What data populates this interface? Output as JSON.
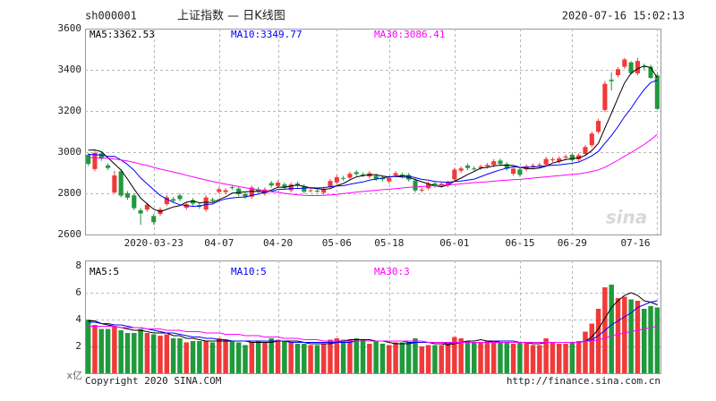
{
  "header": {
    "symbol": "sh000001",
    "title": "上证指数 — 日K线图",
    "datetime": "2020-07-16 15:02:13"
  },
  "footer": {
    "copyright": "Copyright 2020 SINA.COM",
    "url": "http://finance.sina.com.cn"
  },
  "chart_data": [
    {
      "type": "candlestick",
      "watermark": "sina",
      "categories": [
        null,
        null,
        null,
        null,
        null,
        null,
        null,
        null,
        null,
        null,
        "2020-03-23",
        null,
        null,
        null,
        null,
        null,
        null,
        null,
        null,
        null,
        "04-07",
        null,
        null,
        null,
        null,
        null,
        null,
        null,
        null,
        "04-20",
        null,
        null,
        null,
        null,
        null,
        null,
        null,
        null,
        "05-06",
        null,
        null,
        null,
        null,
        null,
        null,
        null,
        "05-18",
        null,
        null,
        null,
        null,
        null,
        null,
        null,
        null,
        null,
        "06-01",
        null,
        null,
        null,
        null,
        null,
        null,
        null,
        null,
        null,
        "06-15",
        null,
        null,
        null,
        null,
        null,
        null,
        null,
        "06-29",
        null,
        null,
        null,
        null,
        null,
        null,
        null,
        null,
        null,
        null,
        null,
        null,
        "07-16"
      ],
      "open": [
        2987,
        2918,
        2994,
        2936,
        2804,
        2907,
        2801,
        2790,
        2718,
        2721,
        2690,
        2700,
        2748,
        2772,
        2790,
        2730,
        2767,
        2743,
        2721,
        2770,
        2807,
        2806,
        2830,
        2823,
        2797,
        2784,
        2820,
        2798,
        2850,
        2836,
        2843,
        2815,
        2848,
        2834,
        2814,
        2813,
        2803,
        2831,
        2853,
        2875,
        2876,
        2903,
        2892,
        2882,
        2885,
        2876,
        2858,
        2888,
        2891,
        2889,
        2862,
        2814,
        2825,
        2848,
        2837,
        2840,
        2868,
        2910,
        2935,
        2921,
        2924,
        2931,
        2938,
        2959,
        2942,
        2895,
        2916,
        2917,
        2930,
        2934,
        2940,
        2961,
        2955,
        2974,
        2987,
        2965,
        2991,
        3034,
        3099,
        3205,
        3352,
        3374,
        3415,
        3436,
        3383,
        3417,
        3415,
        3373
      ],
      "high": [
        2997,
        3006,
        3004,
        2946,
        2910,
        2917,
        2811,
        2800,
        2728,
        2755,
        2700,
        2732,
        2791,
        2782,
        2800,
        2757,
        2777,
        2753,
        2790,
        2780,
        2830,
        2825,
        2840,
        2833,
        2807,
        2838,
        2830,
        2829,
        2860,
        2862,
        2853,
        2853,
        2858,
        2844,
        2825,
        2823,
        2832,
        2870,
        2888,
        2885,
        2905,
        2913,
        2902,
        2908,
        2895,
        2886,
        2885,
        2908,
        2901,
        2899,
        2872,
        2828,
        2857,
        2858,
        2856,
        2862,
        2925,
        2931,
        2945,
        2931,
        2940,
        2948,
        2966,
        2969,
        2952,
        2930,
        2926,
        2941,
        2945,
        2949,
        2977,
        2975,
        2980,
        2989,
        2997,
        2995,
        3035,
        3100,
        3162,
        3346,
        3387,
        3413,
        3458,
        3442,
        3458,
        3430,
        3425,
        3385
      ],
      "low": [
        2933,
        2908,
        2958,
        2913,
        2799,
        2781,
        2769,
        2718,
        2647,
        2711,
        2647,
        2690,
        2738,
        2754,
        2762,
        2720,
        2740,
        2725,
        2711,
        2754,
        2797,
        2796,
        2816,
        2786,
        2774,
        2774,
        2801,
        2788,
        2828,
        2826,
        2817,
        2805,
        2828,
        2798,
        2804,
        2803,
        2793,
        2821,
        2843,
        2861,
        2866,
        2884,
        2881,
        2872,
        2860,
        2858,
        2848,
        2878,
        2873,
        2857,
        2804,
        2804,
        2815,
        2827,
        2827,
        2830,
        2858,
        2900,
        2913,
        2909,
        2914,
        2921,
        2928,
        2933,
        2910,
        2885,
        2880,
        2907,
        2920,
        2924,
        2930,
        2951,
        2945,
        2964,
        2952,
        2955,
        2981,
        3024,
        3089,
        3195,
        3300,
        3364,
        3405,
        3376,
        3373,
        3400,
        3356,
        3208
      ],
      "close": [
        2943,
        2996,
        2968,
        2923,
        2887,
        2789,
        2779,
        2728,
        2702,
        2745,
        2660,
        2722,
        2781,
        2764,
        2772,
        2747,
        2750,
        2735,
        2780,
        2764,
        2820,
        2815,
        2826,
        2796,
        2784,
        2828,
        2811,
        2819,
        2838,
        2852,
        2827,
        2843,
        2838,
        2808,
        2815,
        2810,
        2822,
        2860,
        2878,
        2871,
        2895,
        2894,
        2891,
        2898,
        2870,
        2868,
        2875,
        2898,
        2883,
        2867,
        2814,
        2818,
        2847,
        2837,
        2846,
        2852,
        2915,
        2921,
        2923,
        2919,
        2930,
        2938,
        2956,
        2943,
        2920,
        2920,
        2890,
        2931,
        2935,
        2939,
        2967,
        2965,
        2970,
        2979,
        2962,
        2985,
        3025,
        3090,
        3152,
        3332,
        3345,
        3403,
        3450,
        3384,
        3443,
        3415,
        3361,
        3210
      ],
      "up_color": "#f03a3a",
      "down_color": "#1f9a3c",
      "series": [
        {
          "name": "MA5:3362.53",
          "color": "#000000",
          "values": [
            3010,
            3011,
            3002,
            2973,
            2943,
            2913,
            2869,
            2821,
            2777,
            2749,
            2723,
            2711,
            2722,
            2734,
            2740,
            2757,
            2763,
            2754,
            2757,
            2755,
            2770,
            2783,
            2801,
            2804,
            2808,
            2810,
            2809,
            2808,
            2816,
            2830,
            2829,
            2836,
            2840,
            2834,
            2826,
            2823,
            2819,
            2823,
            2837,
            2848,
            2865,
            2880,
            2886,
            2890,
            2890,
            2884,
            2880,
            2882,
            2879,
            2878,
            2867,
            2856,
            2846,
            2837,
            2832,
            2840,
            2859,
            2874,
            2891,
            2906,
            2922,
            2926,
            2933,
            2937,
            2937,
            2935,
            2926,
            2921,
            2919,
            2923,
            2932,
            2947,
            2955,
            2964,
            2969,
            2972,
            2984,
            3008,
            3043,
            3117,
            3189,
            3264,
            3336,
            3383,
            3405,
            3419,
            3411,
            3362.53
          ]
        },
        {
          "name": "MA10:3349.77",
          "color": "#0000ff",
          "values": [
            2989,
            2988,
            2986,
            2979,
            2980,
            2962,
            2940,
            2912,
            2875,
            2846,
            2818,
            2790,
            2772,
            2756,
            2745,
            2740,
            2737,
            2738,
            2746,
            2748,
            2764,
            2773,
            2778,
            2781,
            2782,
            2790,
            2796,
            2805,
            2810,
            2819,
            2820,
            2823,
            2824,
            2825,
            2828,
            2826,
            2828,
            2832,
            2836,
            2837,
            2844,
            2850,
            2855,
            2864,
            2869,
            2875,
            2880,
            2884,
            2885,
            2884,
            2876,
            2868,
            2864,
            2858,
            2855,
            2854,
            2858,
            2860,
            2864,
            2869,
            2881,
            2893,
            2904,
            2914,
            2922,
            2929,
            2926,
            2927,
            2928,
            2930,
            2934,
            2937,
            2938,
            2942,
            2946,
            2952,
            2966,
            2982,
            3004,
            3043,
            3081,
            3124,
            3172,
            3213,
            3261,
            3304,
            3338,
            3349.77
          ]
        },
        {
          "name": "MA30:3086.41",
          "color": "#ff00ff",
          "values": [
            2975,
            2973,
            2972,
            2970,
            2967,
            2962,
            2957,
            2950,
            2942,
            2935,
            2926,
            2918,
            2911,
            2904,
            2896,
            2888,
            2880,
            2872,
            2865,
            2858,
            2851,
            2845,
            2839,
            2833,
            2827,
            2822,
            2817,
            2812,
            2808,
            2805,
            2800,
            2796,
            2793,
            2790,
            2789,
            2789,
            2790,
            2792,
            2795,
            2799,
            2802,
            2806,
            2809,
            2812,
            2815,
            2818,
            2820,
            2823,
            2826,
            2829,
            2831,
            2833,
            2835,
            2837,
            2839,
            2840,
            2843,
            2846,
            2849,
            2852,
            2854,
            2856,
            2859,
            2862,
            2864,
            2866,
            2868,
            2871,
            2874,
            2877,
            2880,
            2883,
            2886,
            2889,
            2892,
            2895,
            2900,
            2906,
            2914,
            2927,
            2943,
            2961,
            2980,
            2998,
            3018,
            3037,
            3060,
            3086.41
          ]
        }
      ],
      "ylim": [
        2600,
        3600
      ],
      "yticks": [
        2600,
        2800,
        3000,
        3200,
        3400,
        3600
      ],
      "grid": true
    },
    {
      "type": "bar",
      "y_label": "x亿",
      "values": [
        4.0,
        3.6,
        3.3,
        3.3,
        3.5,
        3.2,
        3.0,
        3.0,
        3.3,
        3.0,
        2.9,
        2.8,
        2.9,
        2.6,
        2.6,
        2.3,
        2.4,
        2.4,
        2.4,
        2.3,
        2.6,
        2.5,
        2.4,
        2.3,
        2.1,
        2.3,
        2.4,
        2.3,
        2.6,
        2.5,
        2.4,
        2.3,
        2.2,
        2.2,
        2.1,
        2.1,
        2.2,
        2.5,
        2.6,
        2.5,
        2.5,
        2.6,
        2.5,
        2.2,
        2.4,
        2.2,
        2.1,
        2.3,
        2.3,
        2.3,
        2.6,
        2.0,
        2.1,
        2.1,
        2.1,
        2.2,
        2.7,
        2.6,
        2.4,
        2.3,
        2.3,
        2.4,
        2.4,
        2.3,
        2.3,
        2.2,
        2.3,
        2.3,
        2.1,
        2.1,
        2.6,
        2.3,
        2.2,
        2.2,
        2.3,
        2.4,
        3.1,
        3.7,
        4.8,
        6.4,
        6.6,
        5.6,
        5.7,
        5.5,
        5.4,
        4.8,
        5.0,
        4.9
      ],
      "series": [
        {
          "name": "MA5:5",
          "color": "#000000",
          "values": [
            3.9,
            3.9,
            3.7,
            3.6,
            3.5,
            3.4,
            3.3,
            3.2,
            3.2,
            3.1,
            3.0,
            3.0,
            3.0,
            2.8,
            2.8,
            2.6,
            2.6,
            2.5,
            2.4,
            2.4,
            2.4,
            2.4,
            2.4,
            2.4,
            2.4,
            2.3,
            2.3,
            2.3,
            2.3,
            2.4,
            2.4,
            2.4,
            2.4,
            2.3,
            2.2,
            2.2,
            2.2,
            2.2,
            2.3,
            2.4,
            2.5,
            2.5,
            2.5,
            2.5,
            2.4,
            2.4,
            2.3,
            2.2,
            2.2,
            2.2,
            2.3,
            2.3,
            2.3,
            2.2,
            2.2,
            2.1,
            2.2,
            2.3,
            2.4,
            2.4,
            2.5,
            2.4,
            2.4,
            2.3,
            2.3,
            2.3,
            2.3,
            2.3,
            2.2,
            2.2,
            2.3,
            2.3,
            2.3,
            2.3,
            2.3,
            2.3,
            2.4,
            2.7,
            3.3,
            4.1,
            4.9,
            5.4,
            5.8,
            6.0,
            5.8,
            5.4,
            5.3,
            5.1
          ]
        },
        {
          "name": "MA10:5",
          "color": "#0000ff",
          "values": [
            3.8,
            3.8,
            3.7,
            3.7,
            3.6,
            3.6,
            3.5,
            3.4,
            3.4,
            3.3,
            3.2,
            3.1,
            3.0,
            3.0,
            2.9,
            2.8,
            2.7,
            2.7,
            2.6,
            2.6,
            2.5,
            2.5,
            2.4,
            2.4,
            2.4,
            2.4,
            2.4,
            2.4,
            2.4,
            2.4,
            2.4,
            2.3,
            2.3,
            2.3,
            2.3,
            2.3,
            2.3,
            2.3,
            2.3,
            2.3,
            2.3,
            2.4,
            2.4,
            2.4,
            2.4,
            2.4,
            2.4,
            2.4,
            2.4,
            2.3,
            2.3,
            2.3,
            2.3,
            2.3,
            2.3,
            2.2,
            2.3,
            2.3,
            2.3,
            2.3,
            2.3,
            2.3,
            2.4,
            2.4,
            2.4,
            2.4,
            2.3,
            2.3,
            2.3,
            2.3,
            2.3,
            2.3,
            2.3,
            2.3,
            2.3,
            2.3,
            2.4,
            2.5,
            2.8,
            3.2,
            3.6,
            3.9,
            4.2,
            4.5,
            4.9,
            5.1,
            5.3,
            5.4
          ]
        },
        {
          "name": "MA30:3",
          "color": "#ff00ff",
          "values": [
            3.5,
            3.5,
            3.5,
            3.5,
            3.5,
            3.4,
            3.4,
            3.4,
            3.4,
            3.3,
            3.3,
            3.3,
            3.2,
            3.2,
            3.2,
            3.1,
            3.1,
            3.1,
            3.0,
            3.0,
            3.0,
            2.9,
            2.9,
            2.9,
            2.8,
            2.8,
            2.8,
            2.7,
            2.7,
            2.7,
            2.6,
            2.6,
            2.6,
            2.5,
            2.5,
            2.5,
            2.4,
            2.4,
            2.4,
            2.4,
            2.4,
            2.4,
            2.4,
            2.4,
            2.4,
            2.4,
            2.4,
            2.4,
            2.4,
            2.4,
            2.4,
            2.4,
            2.3,
            2.3,
            2.3,
            2.3,
            2.3,
            2.3,
            2.3,
            2.3,
            2.3,
            2.3,
            2.3,
            2.3,
            2.3,
            2.3,
            2.3,
            2.3,
            2.3,
            2.3,
            2.3,
            2.3,
            2.3,
            2.3,
            2.3,
            2.3,
            2.4,
            2.4,
            2.5,
            2.6,
            2.8,
            2.9,
            3.0,
            3.1,
            3.2,
            3.3,
            3.4,
            3.5
          ]
        }
      ],
      "ylim": [
        0,
        8
      ],
      "yticks": [
        2,
        4,
        6,
        8
      ],
      "grid": true
    }
  ]
}
